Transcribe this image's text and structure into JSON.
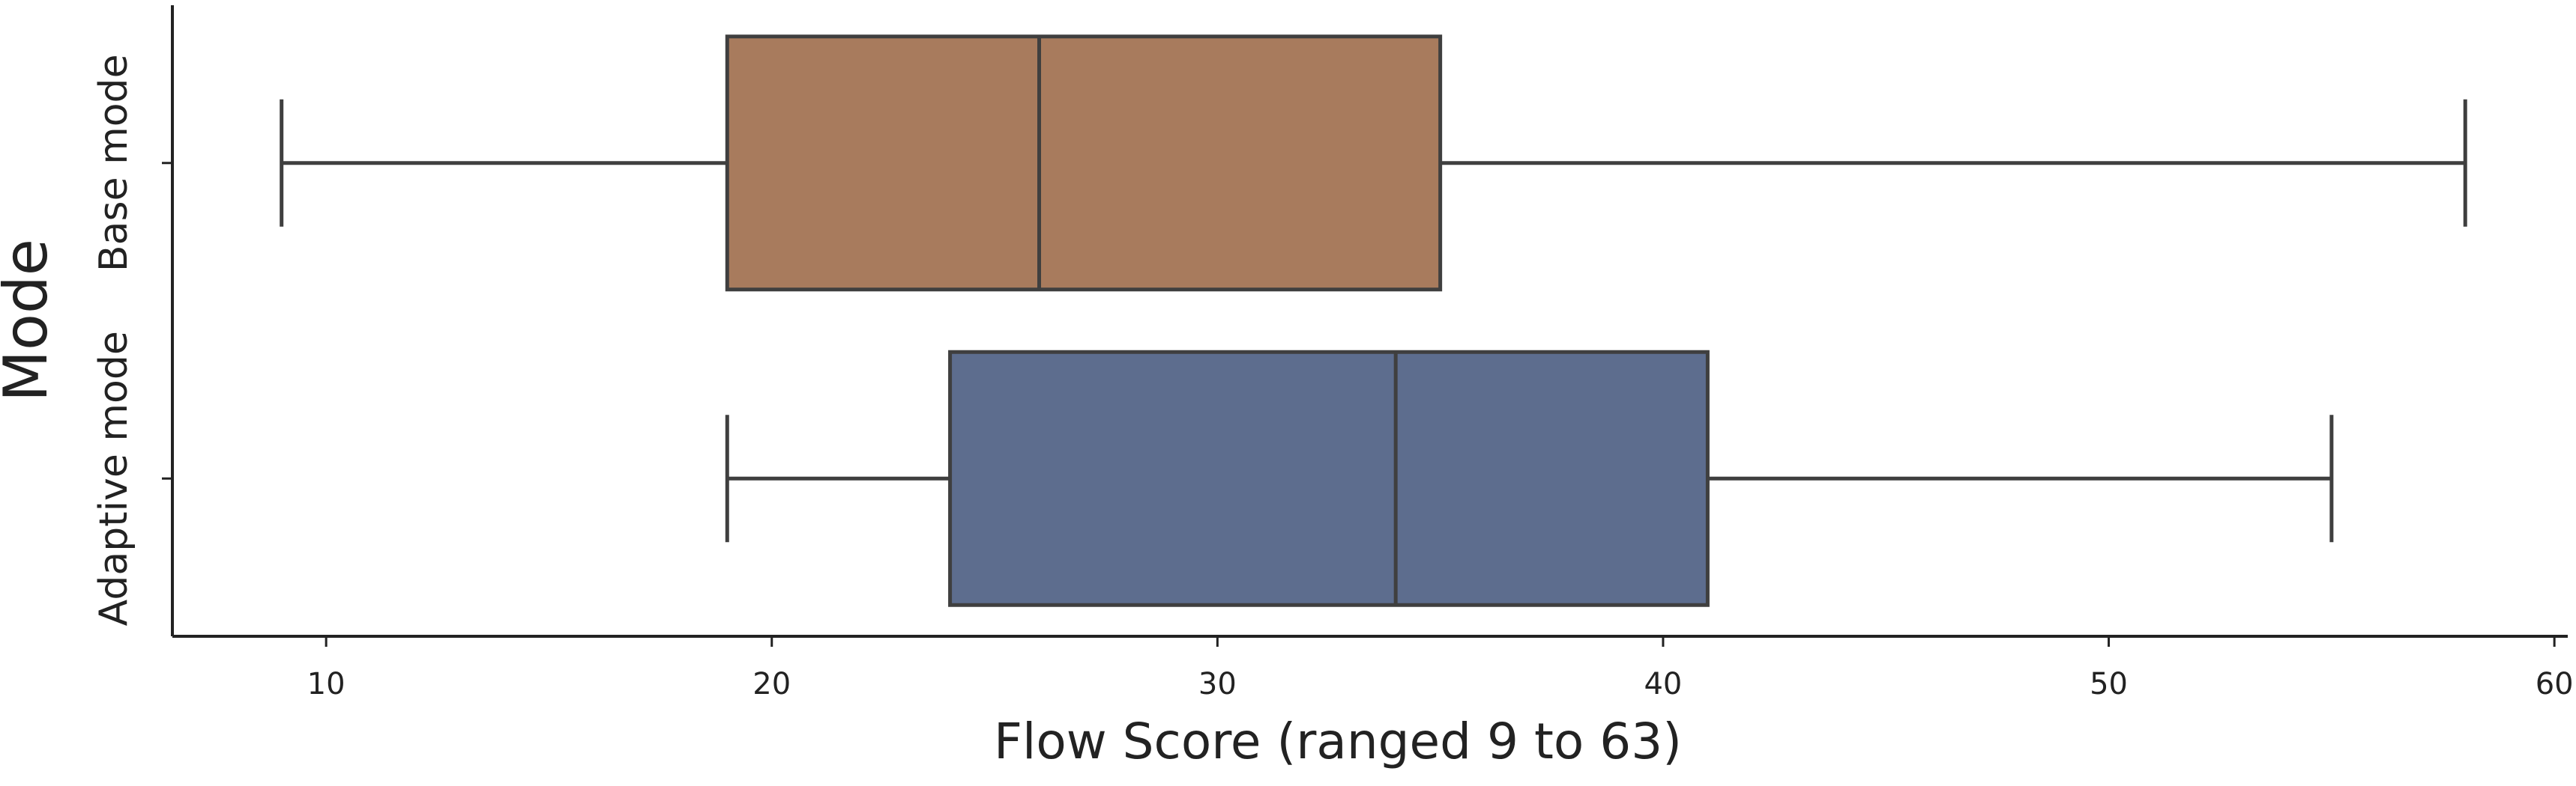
{
  "chart_data": {
    "type": "boxplot",
    "orientation": "horizontal",
    "xlabel": "Flow Score (ranged 9 to 63)",
    "ylabel": "Mode",
    "categories": [
      "Base mode",
      "Adaptive mode"
    ],
    "boxes": [
      {
        "color": "#a87b5d",
        "whislo": 9,
        "q1": 19,
        "med": 26,
        "q3": 35,
        "whishi": 58
      },
      {
        "color": "#5d6d8e",
        "whislo": 19,
        "q1": 24,
        "med": 34,
        "q3": 41,
        "whishi": 55
      }
    ],
    "xlim": [
      6.55,
      60.3
    ],
    "xticks": [
      10,
      20,
      30,
      40,
      50,
      60
    ]
  }
}
